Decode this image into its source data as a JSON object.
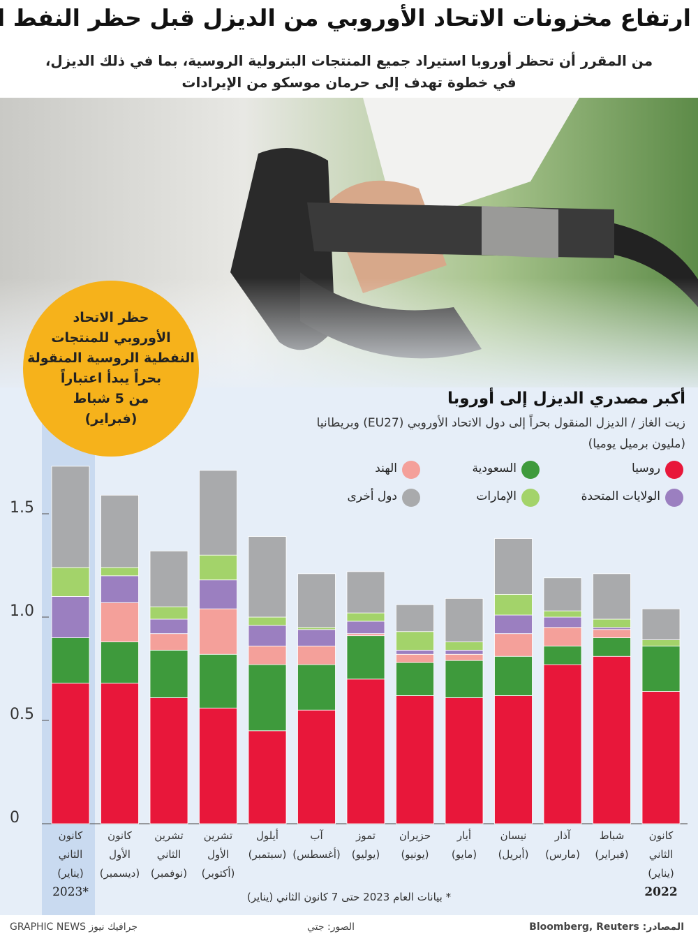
{
  "header": {
    "title": "ارتفاع مخزونات الاتحاد الأوروبي من الديزل قبل حظر النفط الروسي",
    "subtitle": "من المقرر أن تحظر أوروبا استيراد جميع المنتجات البترولية الروسية، بما في ذلك الديزل،\nفي خطوة تهدف إلى حرمان موسكو من الإيرادات"
  },
  "callout": "حظر الاتحاد\nالأوروبي للمنتجات\nالنفطية الروسية المنقولة\nبحراً يبدأ اعتباراً\nمن 5 شباط\n(فبراير)",
  "chart_data": {
    "type": "stacked_bar",
    "title": "أكبر مصدري الديزل إلى أوروبا",
    "subtitle": "زيت الغاز / الديزل المنقول بحراً إلى دول الاتحاد الأوروبي (EU27) وبريطانيا",
    "y_axis_label": "(مليون برميل يوميا)",
    "categories": [
      "كانون\nالثاني\n(يناير)",
      "كانون\nالأول\n(ديسمبر)",
      "تشرين\nالثاني\n(نوفمبر)",
      "تشرين\nالأول\n(أكتوبر)",
      "أيلول\n(سبتمبر)",
      "آب\n(أغسطس)",
      "تموز\n(يوليو)",
      "حزيران\n(يونيو)",
      "أيار\n(مايو)",
      "نيسان\n(أبريل)",
      "آذار\n(مارس)",
      "شباط\n(فبراير)",
      "كانون\nالثاني\n(يناير)"
    ],
    "series": [
      {
        "name": "روسيا",
        "color": "#e8173a",
        "values": [
          0.68,
          0.68,
          0.61,
          0.56,
          0.45,
          0.55,
          0.7,
          0.62,
          0.61,
          0.62,
          0.77,
          0.81,
          0.64
        ]
      },
      {
        "name": "السعودية",
        "color": "#3e9a3c",
        "values": [
          0.22,
          0.2,
          0.23,
          0.26,
          0.32,
          0.22,
          0.21,
          0.16,
          0.18,
          0.19,
          0.09,
          0.09,
          0.22
        ]
      },
      {
        "name": "الهند",
        "color": "#f4a09a",
        "values": [
          0,
          0.19,
          0.08,
          0.22,
          0.09,
          0.09,
          0.01,
          0.04,
          0.03,
          0.11,
          0.09,
          0.04,
          0
        ]
      },
      {
        "name": "الولايات المتحدة",
        "color": "#9b7fc0",
        "values": [
          0.2,
          0.13,
          0.07,
          0.14,
          0.1,
          0.08,
          0.06,
          0.02,
          0.02,
          0.09,
          0.05,
          0.01,
          0
        ]
      },
      {
        "name": "الإمارات",
        "color": "#a3d36a",
        "values": [
          0.14,
          0.04,
          0.06,
          0.12,
          0.04,
          0.01,
          0.04,
          0.09,
          0.04,
          0.1,
          0.03,
          0.04,
          0.03
        ]
      },
      {
        "name": "دول أخرى",
        "color": "#a9aaac",
        "values": [
          0.49,
          0.35,
          0.27,
          0.41,
          0.39,
          0.26,
          0.2,
          0.13,
          0.21,
          0.27,
          0.16,
          0.22,
          0.15
        ]
      }
    ],
    "ylim": [
      0,
      1.8
    ],
    "yticks": [
      0,
      0.5,
      {
        "value": 1,
        "label": "1.0"
      },
      1.5
    ],
    "year_labels": [
      "2023*",
      "2022"
    ],
    "footnote": "* بيانات العام 2023 حتى 7 كانون الثاني (يناير)"
  },
  "footer": {
    "brand": "GRAPHIC NEWS جرافيك نيوز",
    "photo": "الصور: جتي",
    "sources": "المصادر: Bloomberg, Reuters"
  }
}
